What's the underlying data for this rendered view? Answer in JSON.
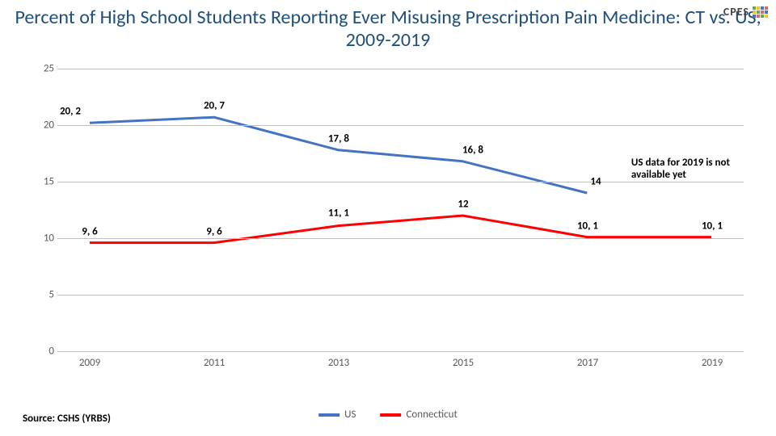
{
  "title": "Percent of High School Students Reporting Ever Misusing Prescription Pain Medicine: CT vs. US, 2009-2019",
  "title_color": "#1f4e79",
  "title_fontsize": 24,
  "logo_text": "CPES",
  "chart": {
    "type": "line",
    "background_color": "#ffffff",
    "grid_color": "#bfbfbf",
    "ylim": [
      0,
      25
    ],
    "ytick_step": 5,
    "yticks": [
      0,
      5,
      10,
      15,
      20,
      25
    ],
    "x_categories": [
      "2009",
      "2011",
      "2013",
      "2015",
      "2017",
      "2019"
    ],
    "line_width": 3,
    "label_fontsize": 13,
    "series": [
      {
        "name": "US",
        "color": "#4472c4",
        "values": [
          20.2,
          20.7,
          17.8,
          16.8,
          14.0,
          null
        ],
        "labels": [
          "20, 2",
          "20, 7",
          "17, 8",
          "16, 8",
          "14",
          ""
        ],
        "label_offsets": [
          [
            -24,
            -14
          ],
          [
            0,
            -14
          ],
          [
            0,
            -14
          ],
          [
            12,
            -14
          ],
          [
            10,
            -14
          ],
          [
            0,
            0
          ]
        ]
      },
      {
        "name": "Connecticut",
        "color": "#ff0000",
        "values": [
          9.6,
          9.6,
          11.1,
          12.0,
          10.1,
          10.1
        ],
        "labels": [
          "9, 6",
          "9, 6",
          "11, 1",
          "12",
          "10, 1",
          "10, 1"
        ],
        "label_offsets": [
          [
            0,
            -14
          ],
          [
            0,
            -14
          ],
          [
            0,
            -16
          ],
          [
            0,
            -14
          ],
          [
            0,
            -14
          ],
          [
            0,
            -14
          ]
        ]
      }
    ]
  },
  "annotation": {
    "text": "US data for 2019 is not available yet",
    "x_index_near": 4.35,
    "y_value": 16.5
  },
  "legend": {
    "items": [
      {
        "label": "US",
        "color": "#4472c4"
      },
      {
        "label": "Connecticut",
        "color": "#ff0000"
      }
    ]
  },
  "source": "Source: CSHS (YRBS)",
  "logo_block_colors": [
    "#6aa84f",
    "#f1c232",
    "#4472c4",
    "#e06666",
    "#f1c232",
    "#6aa84f",
    "#e06666",
    "#4472c4",
    "#4472c4",
    "#e06666",
    "#6aa84f",
    "#f1c232"
  ]
}
